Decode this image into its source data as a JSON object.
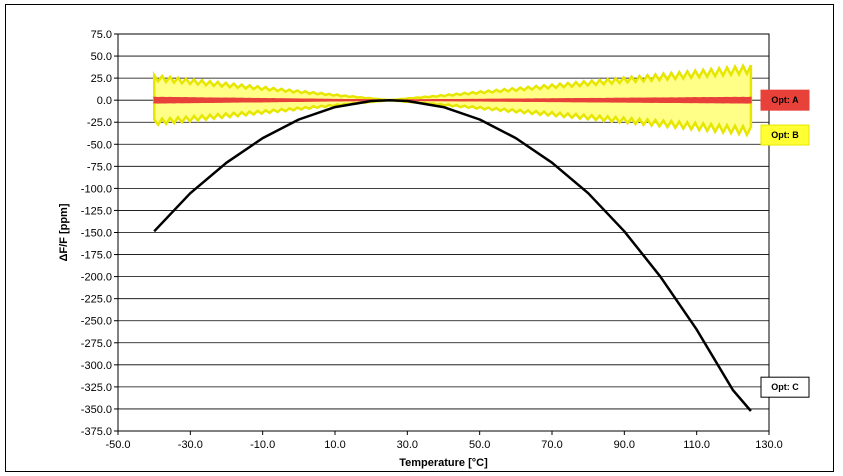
{
  "chart_data": {
    "type": "line",
    "xlabel": "Temperature  [°C]",
    "ylabel": "ΔF/F  [ppm]",
    "xlim": [
      -50,
      130
    ],
    "ylim": [
      -375,
      75
    ],
    "x_ticks": [
      "-50.0",
      "-30.0",
      "-10.0",
      "10.0",
      "30.0",
      "50.0",
      "70.0",
      "90.0",
      "110.0",
      "130.0"
    ],
    "y_ticks": [
      "75.0",
      "50.0",
      "25.0",
      "0.0",
      "-25.0",
      "-50.0",
      "-75.0",
      "-100.0",
      "-125.0",
      "-150.0",
      "-175.0",
      "-200.0",
      "-225.0",
      "-250.0",
      "-275.0",
      "-300.0",
      "-325.0",
      "-350.0",
      "-375.0"
    ],
    "grid": "horizontal",
    "series": [
      {
        "name": "Opt: A",
        "kind": "band",
        "color": "#e8413a",
        "x": [
          -40,
          25,
          125
        ],
        "upper": [
          3,
          0,
          3
        ],
        "lower": [
          -3,
          0,
          -3
        ]
      },
      {
        "name": "Opt: B",
        "kind": "band",
        "color": "#ffff33",
        "edge_color": "#e6e600",
        "x": [
          -40,
          25,
          125
        ],
        "upper": [
          25,
          0,
          35
        ],
        "lower": [
          -25,
          0,
          -35
        ]
      },
      {
        "name": "Opt: C",
        "kind": "line",
        "color": "#000000",
        "x": [
          -40,
          -30,
          -20,
          -10,
          0,
          10,
          20,
          25,
          30,
          40,
          50,
          60,
          70,
          80,
          90,
          100,
          110,
          120,
          125
        ],
        "y": [
          -148.6,
          -105.4,
          -70.9,
          -43.0,
          -21.9,
          -7.9,
          -0.9,
          0.0,
          -0.9,
          -7.9,
          -21.9,
          -43.0,
          -70.9,
          -105.4,
          -148.6,
          -200.2,
          -260.1,
          -328.4,
          -352.3
        ]
      }
    ]
  }
}
